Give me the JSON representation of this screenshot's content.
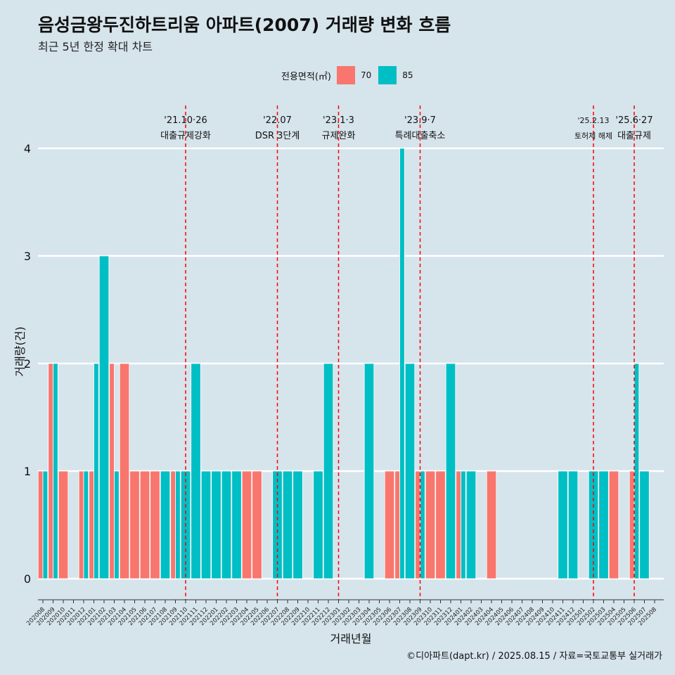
{
  "title": "음성금왕두진하트리움 아파트(2007) 거래량 변화 흐름",
  "subtitle": "최근 5년 한정 확대 차트",
  "caption": "©디아파트(dapt.kr) / 2025.08.15 / 자료=국토교통부 실거래가",
  "legend": {
    "title": "전용면적(㎡)",
    "items": [
      {
        "label": "70",
        "color": "#f8766d"
      },
      {
        "label": "85",
        "color": "#00bfc4"
      }
    ]
  },
  "chart_data": {
    "type": "bar",
    "xlabel": "거래년월",
    "ylabel": "거래량(건)",
    "ylim": [
      0,
      4
    ],
    "yticks": [
      0,
      1,
      2,
      3,
      4
    ],
    "categories": [
      "202008",
      "202009",
      "202010",
      "202011",
      "202012",
      "202101",
      "202102",
      "202103",
      "202104",
      "202105",
      "202106",
      "202107",
      "202108",
      "202109",
      "202110",
      "202111",
      "202112",
      "202201",
      "202202",
      "202203",
      "202204",
      "202205",
      "202206",
      "202207",
      "202208",
      "202209",
      "202210",
      "202211",
      "202212",
      "202301",
      "202302",
      "202303",
      "202304",
      "202305",
      "202306",
      "202307",
      "202308",
      "202309",
      "202310",
      "202311",
      "202312",
      "202401",
      "202402",
      "202403",
      "202404",
      "202405",
      "202406",
      "202407",
      "202408",
      "202409",
      "202410",
      "202411",
      "202412",
      "202501",
      "202502",
      "202503",
      "202504",
      "202505",
      "202506",
      "202507",
      "202508"
    ],
    "series": [
      {
        "name": "70",
        "color": "#f8766d",
        "values": [
          1,
          2,
          1,
          0,
          1,
          1,
          0,
          2,
          2,
          1,
          1,
          1,
          0,
          1,
          0,
          0,
          0,
          0,
          0,
          0,
          1,
          1,
          0,
          0,
          0,
          0,
          0,
          0,
          0,
          0,
          0,
          0,
          0,
          0,
          1,
          1,
          0,
          1,
          1,
          1,
          0,
          1,
          0,
          0,
          1,
          0,
          0,
          0,
          0,
          0,
          0,
          0,
          0,
          0,
          0,
          0,
          1,
          0,
          1,
          0,
          0
        ]
      },
      {
        "name": "85",
        "color": "#00bfc4",
        "values": [
          1,
          2,
          0,
          0,
          1,
          2,
          3,
          1,
          0,
          0,
          0,
          0,
          1,
          1,
          1,
          2,
          1,
          1,
          1,
          1,
          0,
          0,
          0,
          1,
          1,
          1,
          0,
          1,
          2,
          0,
          0,
          0,
          2,
          0,
          0,
          4,
          2,
          1,
          0,
          0,
          2,
          1,
          1,
          0,
          0,
          0,
          0,
          0,
          0,
          0,
          0,
          1,
          1,
          0,
          1,
          1,
          0,
          0,
          2,
          1,
          0
        ]
      }
    ],
    "events": [
      {
        "date": "'21.10·26",
        "label": "대출규제강화",
        "category": "202110"
      },
      {
        "date": "'22.07",
        "label": "DSR 3단계",
        "category": "202207"
      },
      {
        "date": "'23.1·3",
        "label": "규제완화",
        "category": "202301"
      },
      {
        "date": "'23.9·7",
        "label": "특례대출축소",
        "category": "202309"
      },
      {
        "date": "'25.2.13",
        "label": "토허제 해제",
        "category": "202502"
      },
      {
        "date": "'25.6·27",
        "label": "대출규제",
        "category": "202506"
      }
    ]
  }
}
